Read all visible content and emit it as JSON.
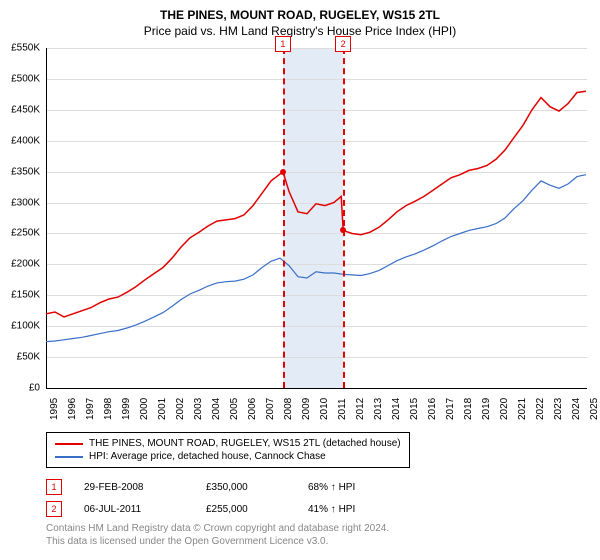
{
  "title": "THE PINES, MOUNT ROAD, RUGELEY, WS15 2TL",
  "subtitle": "Price paid vs. HM Land Registry's House Price Index (HPI)",
  "chart": {
    "type": "line",
    "background_color": "#ffffff",
    "grid_color": "#dddddd",
    "ylim": [
      0,
      550000
    ],
    "ytick_step": 50000,
    "ytick_labels": [
      "£0",
      "£50K",
      "£100K",
      "£150K",
      "£200K",
      "£250K",
      "£300K",
      "£350K",
      "£400K",
      "£450K",
      "£500K",
      "£550K"
    ],
    "x_start_year": 1995,
    "x_end_year": 2025,
    "xtick_labels": [
      "1995",
      "1996",
      "1997",
      "1998",
      "1999",
      "2000",
      "2001",
      "2002",
      "2003",
      "2004",
      "2005",
      "2006",
      "2007",
      "2008",
      "2009",
      "2010",
      "2011",
      "2012",
      "2013",
      "2014",
      "2015",
      "2016",
      "2017",
      "2018",
      "2019",
      "2020",
      "2021",
      "2022",
      "2023",
      "2024",
      "2025"
    ],
    "label_fontsize": 10,
    "title_fontsize": 12,
    "series": [
      {
        "name": "property",
        "label": "THE PINES, MOUNT ROAD, RUGELEY, WS15 2TL (detached house)",
        "color": "#e20000",
        "line_width": 1.5,
        "points": [
          [
            1995.0,
            120000
          ],
          [
            1995.5,
            123000
          ],
          [
            1996.0,
            115000
          ],
          [
            1996.5,
            120000
          ],
          [
            1997.0,
            125000
          ],
          [
            1997.5,
            130000
          ],
          [
            1998.0,
            138000
          ],
          [
            1998.5,
            144000
          ],
          [
            1999.0,
            147000
          ],
          [
            1999.5,
            155000
          ],
          [
            2000.0,
            164000
          ],
          [
            2000.5,
            175000
          ],
          [
            2001.0,
            185000
          ],
          [
            2001.5,
            195000
          ],
          [
            2002.0,
            210000
          ],
          [
            2002.5,
            228000
          ],
          [
            2003.0,
            243000
          ],
          [
            2003.5,
            252000
          ],
          [
            2004.0,
            262000
          ],
          [
            2004.5,
            270000
          ],
          [
            2005.0,
            272000
          ],
          [
            2005.5,
            274000
          ],
          [
            2006.0,
            280000
          ],
          [
            2006.5,
            295000
          ],
          [
            2007.0,
            315000
          ],
          [
            2007.5,
            335000
          ],
          [
            2008.0,
            346000
          ],
          [
            2008.16,
            350000
          ],
          [
            2008.5,
            318000
          ],
          [
            2009.0,
            285000
          ],
          [
            2009.5,
            282000
          ],
          [
            2010.0,
            298000
          ],
          [
            2010.5,
            295000
          ],
          [
            2011.0,
            300000
          ],
          [
            2011.4,
            310000
          ],
          [
            2011.51,
            255000
          ],
          [
            2012.0,
            250000
          ],
          [
            2012.5,
            248000
          ],
          [
            2013.0,
            252000
          ],
          [
            2013.5,
            260000
          ],
          [
            2014.0,
            272000
          ],
          [
            2014.5,
            285000
          ],
          [
            2015.0,
            295000
          ],
          [
            2015.5,
            302000
          ],
          [
            2016.0,
            310000
          ],
          [
            2016.5,
            320000
          ],
          [
            2017.0,
            330000
          ],
          [
            2017.5,
            340000
          ],
          [
            2018.0,
            345000
          ],
          [
            2018.5,
            352000
          ],
          [
            2019.0,
            355000
          ],
          [
            2019.5,
            360000
          ],
          [
            2020.0,
            370000
          ],
          [
            2020.5,
            385000
          ],
          [
            2021.0,
            405000
          ],
          [
            2021.5,
            425000
          ],
          [
            2022.0,
            450000
          ],
          [
            2022.5,
            470000
          ],
          [
            2023.0,
            455000
          ],
          [
            2023.5,
            448000
          ],
          [
            2024.0,
            460000
          ],
          [
            2024.5,
            478000
          ],
          [
            2025.0,
            480000
          ]
        ]
      },
      {
        "name": "hpi",
        "label": "HPI: Average price, detached house, Cannock Chase",
        "color": "#3a6fc9",
        "line_width": 1.2,
        "points": [
          [
            1995.0,
            75000
          ],
          [
            1995.5,
            76000
          ],
          [
            1996.0,
            78000
          ],
          [
            1996.5,
            80000
          ],
          [
            1997.0,
            82000
          ],
          [
            1997.5,
            85000
          ],
          [
            1998.0,
            88000
          ],
          [
            1998.5,
            91000
          ],
          [
            1999.0,
            93000
          ],
          [
            1999.5,
            97000
          ],
          [
            2000.0,
            102000
          ],
          [
            2000.5,
            108000
          ],
          [
            2001.0,
            115000
          ],
          [
            2001.5,
            122000
          ],
          [
            2002.0,
            132000
          ],
          [
            2002.5,
            143000
          ],
          [
            2003.0,
            152000
          ],
          [
            2003.5,
            158000
          ],
          [
            2004.0,
            165000
          ],
          [
            2004.5,
            170000
          ],
          [
            2005.0,
            172000
          ],
          [
            2005.5,
            173000
          ],
          [
            2006.0,
            176000
          ],
          [
            2006.5,
            183000
          ],
          [
            2007.0,
            195000
          ],
          [
            2007.5,
            205000
          ],
          [
            2008.0,
            210000
          ],
          [
            2008.5,
            198000
          ],
          [
            2009.0,
            180000
          ],
          [
            2009.5,
            178000
          ],
          [
            2010.0,
            188000
          ],
          [
            2010.5,
            186000
          ],
          [
            2011.0,
            186000
          ],
          [
            2011.5,
            184000
          ],
          [
            2012.0,
            183000
          ],
          [
            2012.5,
            182000
          ],
          [
            2013.0,
            185000
          ],
          [
            2013.5,
            190000
          ],
          [
            2014.0,
            198000
          ],
          [
            2014.5,
            206000
          ],
          [
            2015.0,
            212000
          ],
          [
            2015.5,
            217000
          ],
          [
            2016.0,
            223000
          ],
          [
            2016.5,
            230000
          ],
          [
            2017.0,
            238000
          ],
          [
            2017.5,
            245000
          ],
          [
            2018.0,
            250000
          ],
          [
            2018.5,
            255000
          ],
          [
            2019.0,
            258000
          ],
          [
            2019.5,
            261000
          ],
          [
            2020.0,
            266000
          ],
          [
            2020.5,
            275000
          ],
          [
            2021.0,
            290000
          ],
          [
            2021.5,
            303000
          ],
          [
            2022.0,
            320000
          ],
          [
            2022.5,
            335000
          ],
          [
            2023.0,
            328000
          ],
          [
            2023.5,
            323000
          ],
          [
            2024.0,
            330000
          ],
          [
            2024.5,
            342000
          ],
          [
            2025.0,
            345000
          ]
        ]
      }
    ],
    "sales": [
      {
        "index": "1",
        "year": 2008.16,
        "price": 350000,
        "date_label": "29-FEB-2008",
        "price_label": "£350,000",
        "hpi_label": "68% ↑ HPI",
        "color": "#e20000"
      },
      {
        "index": "2",
        "year": 2011.51,
        "price": 255000,
        "date_label": "06-JUL-2011",
        "price_label": "£255,000",
        "hpi_label": "41% ↑ HPI",
        "color": "#e20000"
      }
    ],
    "band": {
      "start_year": 2008.16,
      "end_year": 2011.51,
      "color": "rgba(200,215,240,0.5)"
    }
  },
  "footer": {
    "line1": "Contains HM Land Registry data © Crown copyright and database right 2024.",
    "line2": "This data is licensed under the Open Government Licence v3.0."
  }
}
